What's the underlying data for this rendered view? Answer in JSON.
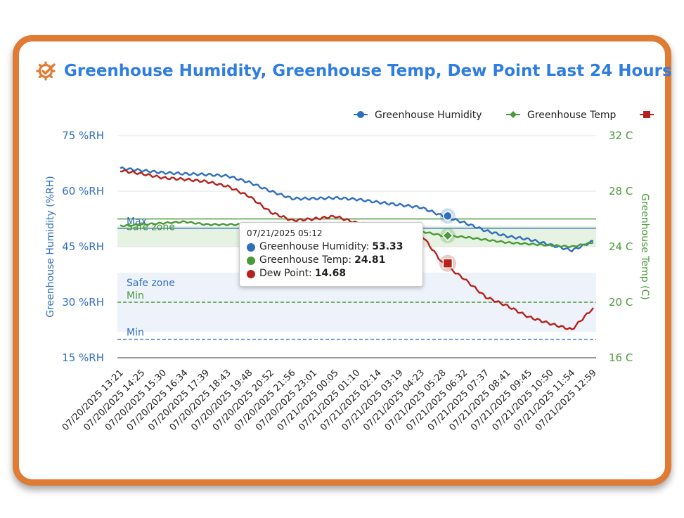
{
  "title": "Greenhouse Humidity, Greenhouse Temp, Dew Point Last 24 Hours",
  "colors": {
    "humidity": "#2f6fc0",
    "temp": "#4b9a3a",
    "dew": "#b5221b",
    "accent": "#e07b33",
    "title": "#2f7de1"
  },
  "legend": [
    {
      "name": "Greenhouse Humidity",
      "color": "#2f6fc0",
      "marker": "circle"
    },
    {
      "name": "Greenhouse Temp",
      "color": "#4b9a3a",
      "marker": "diamond"
    },
    {
      "name": "",
      "color": "#b5221b",
      "marker": "square"
    }
  ],
  "tooltip": {
    "time": "07/21/2025 05:12",
    "rows": [
      {
        "label": "Greenhouse Humidity:",
        "value": "53.33",
        "color": "#2f6fc0"
      },
      {
        "label": "Greenhouse Temp:",
        "value": "24.81",
        "color": "#4b9a3a"
      },
      {
        "label": "Dew Point:",
        "value": "14.68",
        "color": "#b5221b"
      }
    ]
  },
  "chart_data": {
    "type": "line",
    "y_left": {
      "label": "Greenhouse Humidity (%RH)",
      "range": [
        15,
        75
      ],
      "ticks": [
        "15 %RH",
        "30 %RH",
        "45 %RH",
        "60 %RH",
        "75 %RH"
      ]
    },
    "y_right": {
      "label": "Greenhouse Temp (C)",
      "range": [
        16,
        32
      ],
      "ticks": [
        "16 C",
        "20 C",
        "24 C",
        "28 C",
        "32 C"
      ]
    },
    "x_labels": [
      "07/20/2025 13:21",
      "07/20/2025 14:25",
      "07/20/2025 15:30",
      "07/20/2025 16:34",
      "07/20/2025 17:39",
      "07/20/2025 18:43",
      "07/20/2025 19:48",
      "07/20/2025 20:52",
      "07/20/2025 21:56",
      "07/20/2025 23:01",
      "07/21/2025 00:05",
      "07/21/2025 01:10",
      "07/21/2025 02:14",
      "07/21/2025 03:19",
      "07/21/2025 04:23",
      "07/21/2025 05:28",
      "07/21/2025 06:32",
      "07/21/2025 07:37",
      "07/21/2025 08:41",
      "07/21/2025 09:45",
      "07/21/2025 10:50",
      "07/21/2025 11:54",
      "07/21/2025 12:59"
    ],
    "plot_bands": [
      {
        "axis": "right",
        "from": 24,
        "to": 25.5,
        "label": "Safe zone",
        "color": "#e6f2e2"
      },
      {
        "axis": "left",
        "from": 22,
        "to": 38,
        "label": "Safe zone",
        "color": "#eef3fb"
      }
    ],
    "plot_lines": [
      {
        "axis": "left",
        "value": 50,
        "label": "Max",
        "color": "#2f6fc0",
        "dash": false
      },
      {
        "axis": "left",
        "value": 20,
        "label": "Min",
        "color": "#2f6fc0",
        "dash": true
      },
      {
        "axis": "right",
        "value": 26,
        "label": "",
        "color": "#4b9a3a",
        "dash": false
      },
      {
        "axis": "right",
        "value": 20,
        "label": "Min",
        "color": "#4b9a3a",
        "dash": true
      }
    ],
    "series": [
      {
        "name": "Greenhouse Humidity",
        "axis": "left",
        "color": "#2f6fc0",
        "values": [
          66.2,
          65.6,
          65,
          64.7,
          64.5,
          64.1,
          62.4,
          60,
          58,
          58,
          58.2,
          57.8,
          57,
          56.3,
          55.6,
          53.3,
          51.5,
          49.3,
          47.8,
          47,
          45.5,
          44,
          46.5
        ]
      },
      {
        "name": "Greenhouse Temp",
        "axis": "right",
        "color": "#4b9a3a",
        "values": [
          25.5,
          25.6,
          25.7,
          25.8,
          25.6,
          25.6,
          25.6,
          25.5,
          25.4,
          25.5,
          25.5,
          25.4,
          25.3,
          25.2,
          25.1,
          24.8,
          24.7,
          24.5,
          24.3,
          24.2,
          24.1,
          24,
          24.3
        ]
      },
      {
        "name": "Dew Point",
        "axis": "left",
        "color": "#b5221b",
        "values": [
          65.6,
          64.7,
          63.6,
          63.2,
          62.6,
          61.3,
          58.6,
          54.3,
          52.1,
          52.5,
          53.2,
          51.4,
          50.5,
          49.8,
          48.3,
          40.5,
          36.3,
          31.4,
          29,
          26,
          24.2,
          22.6,
          28.5
        ]
      }
    ],
    "highlight_index": 15
  }
}
